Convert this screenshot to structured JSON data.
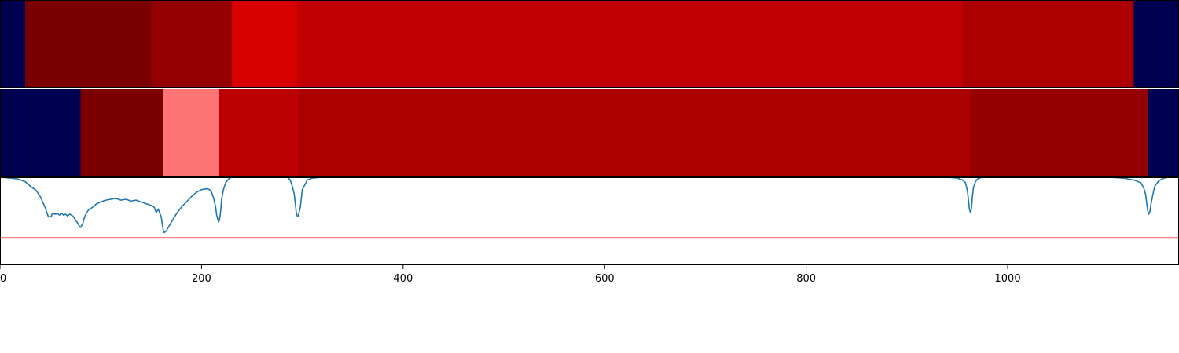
{
  "chart_data": [
    {
      "type": "heatmap",
      "row": 1,
      "segments": [
        {
          "start": 0,
          "end": 25,
          "color": "#000050"
        },
        {
          "start": 25,
          "end": 150,
          "color": "#7a0000"
        },
        {
          "start": 150,
          "end": 230,
          "color": "#950000"
        },
        {
          "start": 230,
          "end": 295,
          "color": "#d60000"
        },
        {
          "start": 295,
          "end": 955,
          "color": "#c00000"
        },
        {
          "start": 955,
          "end": 1125,
          "color": "#aa0000"
        },
        {
          "start": 1125,
          "end": 1170,
          "color": "#000050"
        }
      ],
      "xlim": [
        0,
        1170
      ]
    },
    {
      "type": "heatmap",
      "row": 2,
      "segments": [
        {
          "start": 0,
          "end": 80,
          "color": "#000050"
        },
        {
          "start": 80,
          "end": 162,
          "color": "#7a0000"
        },
        {
          "start": 162,
          "end": 217,
          "color": "#ff7575"
        },
        {
          "start": 217,
          "end": 297,
          "color": "#ba0000"
        },
        {
          "start": 297,
          "end": 963,
          "color": "#aa0000"
        },
        {
          "start": 963,
          "end": 1139,
          "color": "#920000"
        },
        {
          "start": 1139,
          "end": 1170,
          "color": "#000050"
        }
      ],
      "xlim": [
        0,
        1170
      ]
    },
    {
      "type": "line",
      "xlim": [
        0,
        1170
      ],
      "ylim": [
        0,
        1
      ],
      "grid": false,
      "x_ticks": [
        0,
        200,
        400,
        600,
        800,
        1000
      ],
      "tick_labels": [
        "0",
        "200",
        "400",
        "600",
        "800",
        "1000"
      ],
      "series": [
        {
          "color": "#1f77b4",
          "x": [
            0,
            10,
            18,
            25,
            30,
            36,
            40,
            45,
            48,
            50,
            51,
            52,
            55,
            57,
            59,
            61,
            63,
            65,
            67,
            69,
            71,
            73,
            75,
            77,
            79,
            80,
            82,
            84,
            86,
            88,
            92,
            96,
            100,
            105,
            110,
            115,
            120,
            125,
            130,
            135,
            140,
            145,
            150,
            153,
            155,
            157,
            159,
            160,
            161,
            162,
            163,
            165,
            168,
            172,
            176,
            180,
            185,
            190,
            195,
            200,
            205,
            208,
            210,
            212,
            214,
            215,
            216,
            217,
            218,
            219,
            220,
            222,
            224,
            226,
            228,
            230,
            235,
            240,
            260,
            285,
            288,
            290,
            292,
            294,
            295,
            296,
            298,
            300,
            305,
            310,
            320,
            340,
            940,
            950,
            955,
            958,
            960,
            961,
            962,
            963,
            964,
            965,
            966,
            968,
            970,
            972,
            975,
            980,
            1000,
            1100,
            1115,
            1125,
            1132,
            1135,
            1137,
            1138,
            1139,
            1140,
            1141,
            1142,
            1144,
            1146,
            1150,
            1155,
            1160,
            1165,
            1170
          ],
          "y": [
            1.0,
            0.99,
            0.98,
            0.95,
            0.9,
            0.85,
            0.78,
            0.65,
            0.55,
            0.55,
            0.56,
            0.59,
            0.58,
            0.59,
            0.57,
            0.59,
            0.57,
            0.58,
            0.56,
            0.58,
            0.57,
            0.55,
            0.51,
            0.48,
            0.44,
            0.43,
            0.47,
            0.55,
            0.6,
            0.63,
            0.66,
            0.7,
            0.72,
            0.74,
            0.75,
            0.76,
            0.74,
            0.75,
            0.73,
            0.74,
            0.72,
            0.7,
            0.68,
            0.66,
            0.6,
            0.64,
            0.58,
            0.55,
            0.47,
            0.4,
            0.37,
            0.39,
            0.45,
            0.53,
            0.6,
            0.66,
            0.72,
            0.78,
            0.83,
            0.86,
            0.87,
            0.86,
            0.83,
            0.76,
            0.66,
            0.57,
            0.53,
            0.49,
            0.53,
            0.62,
            0.76,
            0.87,
            0.94,
            0.97,
            0.99,
            1.0,
            1.0,
            1.0,
            1.0,
            1.0,
            0.97,
            0.9,
            0.81,
            0.6,
            0.56,
            0.56,
            0.66,
            0.86,
            0.97,
            0.99,
            1.0,
            1.0,
            1.0,
            0.99,
            0.97,
            0.94,
            0.85,
            0.75,
            0.64,
            0.6,
            0.64,
            0.78,
            0.88,
            0.95,
            0.98,
            0.99,
            1.0,
            1.0,
            1.0,
            1.0,
            0.99,
            0.97,
            0.94,
            0.88,
            0.8,
            0.7,
            0.62,
            0.58,
            0.6,
            0.68,
            0.8,
            0.9,
            0.96,
            0.99,
            1.0,
            1.0,
            1.0
          ]
        },
        {
          "color": "#ff0000",
          "x": [
            0,
            1170
          ],
          "y": [
            0.31,
            0.31
          ]
        }
      ]
    }
  ]
}
